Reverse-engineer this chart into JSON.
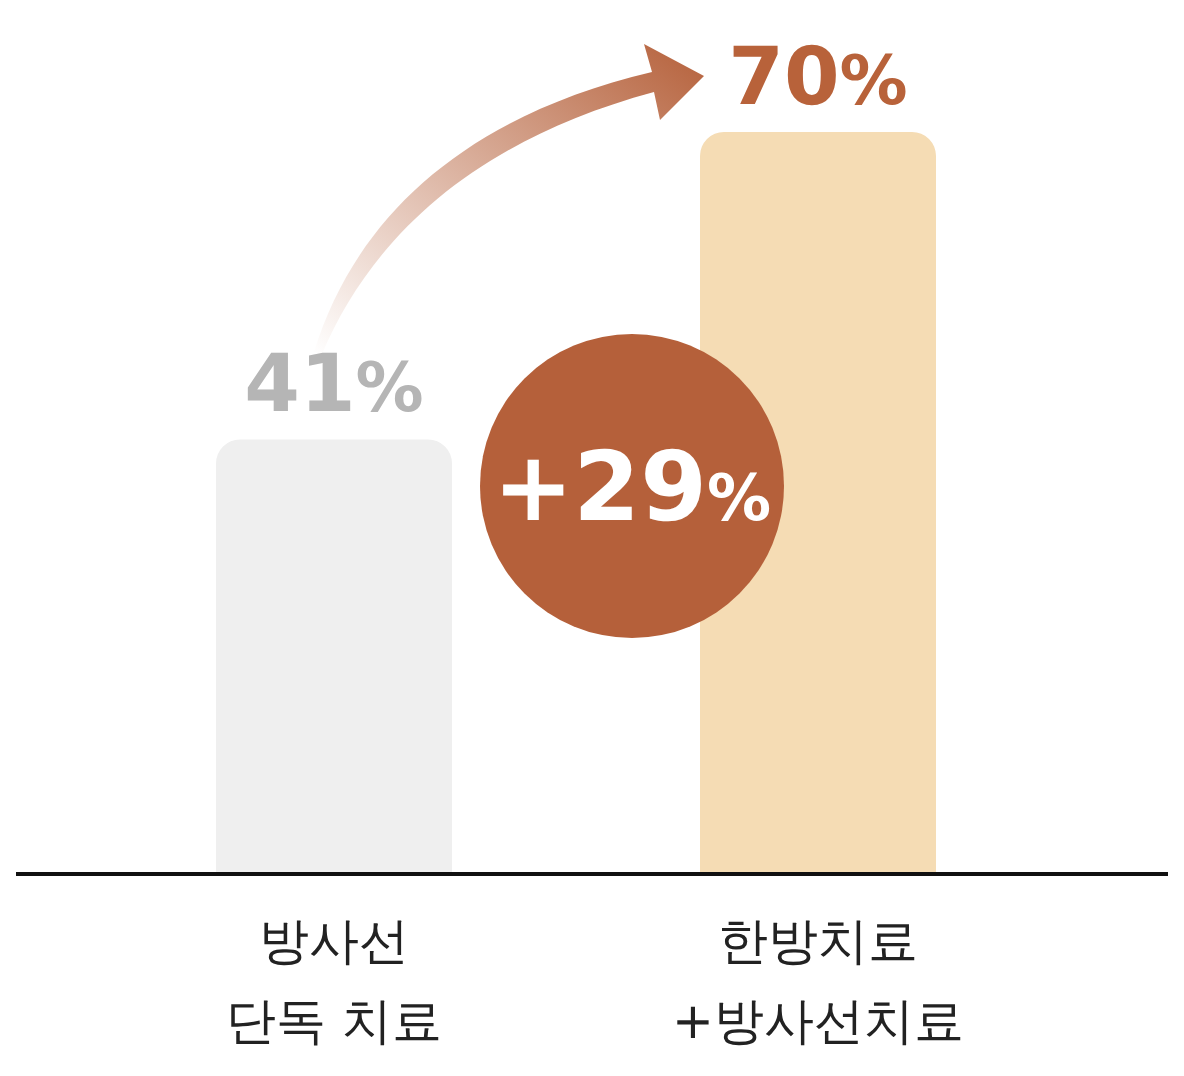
{
  "chart_data": {
    "type": "bar",
    "categories": [
      "방사선\n단독 치료",
      "한방치료\n+방사선치료"
    ],
    "values": [
      41,
      70
    ],
    "colors": [
      "#efefef",
      "#f5dcb4"
    ],
    "value_labels": [
      "41%",
      "70%"
    ],
    "annotations": [
      "+29%"
    ],
    "grid": false,
    "legend": false
  }
}
